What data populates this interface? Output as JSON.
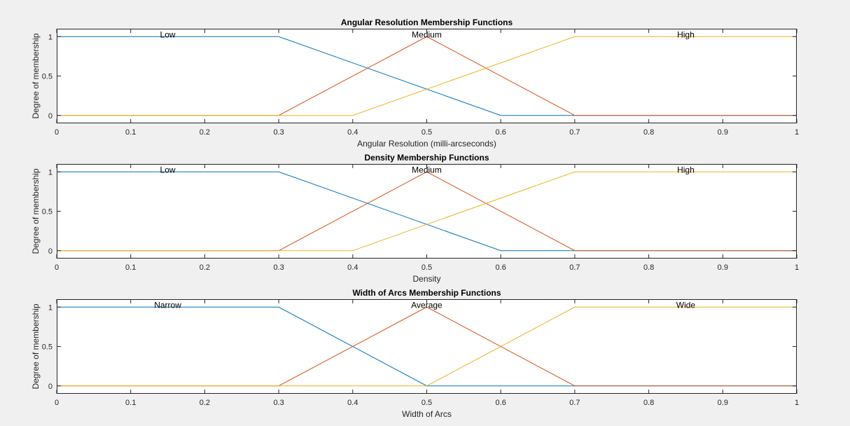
{
  "figure_bg": "#f0f0f0",
  "colors": {
    "blue": "#0072bd",
    "orange": "#d95319",
    "yellow": "#edb120",
    "axis": "#262626"
  },
  "chart_data": [
    {
      "type": "line",
      "title": "Angular Resolution Membership Functions",
      "xlabel": "Angular Resolution (milli-arcseconds)",
      "ylabel": "Degree of membership",
      "xlim": [
        0,
        1
      ],
      "ylim": [
        -0.1,
        1.1
      ],
      "xticks": [
        "0",
        "0.1",
        "0.2",
        "0.3",
        "0.4",
        "0.5",
        "0.6",
        "0.7",
        "0.8",
        "0.9",
        "1"
      ],
      "yticks": [
        "0",
        "0.5",
        "1"
      ],
      "grid": false,
      "series": [
        {
          "name": "Low",
          "color": "#0072bd",
          "label_x": 0.15,
          "x": [
            0,
            0.3,
            0.6,
            1
          ],
          "y": [
            1,
            1,
            0,
            0
          ]
        },
        {
          "name": "Medium",
          "color": "#d95319",
          "label_x": 0.5,
          "x": [
            0,
            0.3,
            0.5,
            0.7,
            1
          ],
          "y": [
            0,
            0,
            1,
            0,
            0
          ]
        },
        {
          "name": "High",
          "color": "#edb120",
          "label_x": 0.85,
          "x": [
            0,
            0.4,
            0.7,
            1
          ],
          "y": [
            0,
            0,
            1,
            1
          ]
        }
      ]
    },
    {
      "type": "line",
      "title": "Density Membership Functions",
      "xlabel": "Density",
      "ylabel": "Degree of membership",
      "xlim": [
        0,
        1
      ],
      "ylim": [
        -0.1,
        1.1
      ],
      "xticks": [
        "0",
        "0.1",
        "0.2",
        "0.3",
        "0.4",
        "0.5",
        "0.6",
        "0.7",
        "0.8",
        "0.9",
        "1"
      ],
      "yticks": [
        "0",
        "0.5",
        "1"
      ],
      "grid": false,
      "series": [
        {
          "name": "Low",
          "color": "#0072bd",
          "label_x": 0.15,
          "x": [
            0,
            0.3,
            0.6,
            1
          ],
          "y": [
            1,
            1,
            0,
            0
          ]
        },
        {
          "name": "Medium",
          "color": "#d95319",
          "label_x": 0.5,
          "x": [
            0,
            0.3,
            0.5,
            0.7,
            1
          ],
          "y": [
            0,
            0,
            1,
            0,
            0
          ]
        },
        {
          "name": "High",
          "color": "#edb120",
          "label_x": 0.85,
          "x": [
            0,
            0.4,
            0.7,
            1
          ],
          "y": [
            0,
            0,
            1,
            1
          ]
        }
      ]
    },
    {
      "type": "line",
      "title": "Width of Arcs Membership Functions",
      "xlabel": "Width of Arcs",
      "ylabel": "Degree of membership",
      "xlim": [
        0,
        1
      ],
      "ylim": [
        -0.1,
        1.1
      ],
      "xticks": [
        "0",
        "0.1",
        "0.2",
        "0.3",
        "0.4",
        "0.5",
        "0.6",
        "0.7",
        "0.8",
        "0.9",
        "1"
      ],
      "yticks": [
        "0",
        "0.5",
        "1"
      ],
      "grid": false,
      "series": [
        {
          "name": "Narrow",
          "color": "#0072bd",
          "label_x": 0.15,
          "x": [
            0,
            0.3,
            0.5,
            1
          ],
          "y": [
            1,
            1,
            0,
            0
          ]
        },
        {
          "name": "Average",
          "color": "#d95319",
          "label_x": 0.5,
          "x": [
            0,
            0.3,
            0.5,
            0.7,
            1
          ],
          "y": [
            0,
            0,
            1,
            0,
            0
          ]
        },
        {
          "name": "Wide",
          "color": "#edb120",
          "label_x": 0.85,
          "x": [
            0,
            0.5,
            0.7,
            1
          ],
          "y": [
            0,
            0,
            1,
            1
          ]
        }
      ]
    }
  ]
}
